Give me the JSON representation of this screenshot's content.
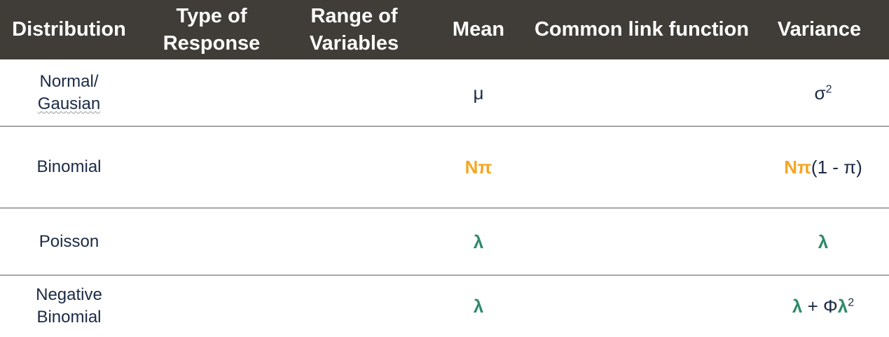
{
  "headers": {
    "distribution": "Distribution",
    "type_of_response": "Type of Response",
    "range_of_variables": "Range of Variables",
    "mean": "Mean",
    "link_function": "Common link function",
    "variance": "Variance"
  },
  "rows": [
    {
      "distribution_line1": "Normal/",
      "distribution_line2": "Gausian",
      "mean": "μ",
      "variance_base": "σ",
      "variance_sup": "2"
    },
    {
      "distribution": "Binomial",
      "mean": "Nπ",
      "variance_bold": "Nπ",
      "variance_rest": "(1 - π)"
    },
    {
      "distribution": "Poisson",
      "mean": "λ",
      "variance": "λ"
    },
    {
      "distribution_line1": "Negative",
      "distribution_line2": "Binomial",
      "mean": "λ",
      "variance_a": "λ",
      "variance_b": " + Φ",
      "variance_c": "λ",
      "variance_sup": "2"
    }
  ],
  "colors": {
    "header_bg": "#403c38",
    "header_text": "#ffffff",
    "body_text": "#1b2a45",
    "accent_orange": "#f5a623",
    "accent_green": "#2e8b67",
    "row_border": "#5a5a5a"
  }
}
